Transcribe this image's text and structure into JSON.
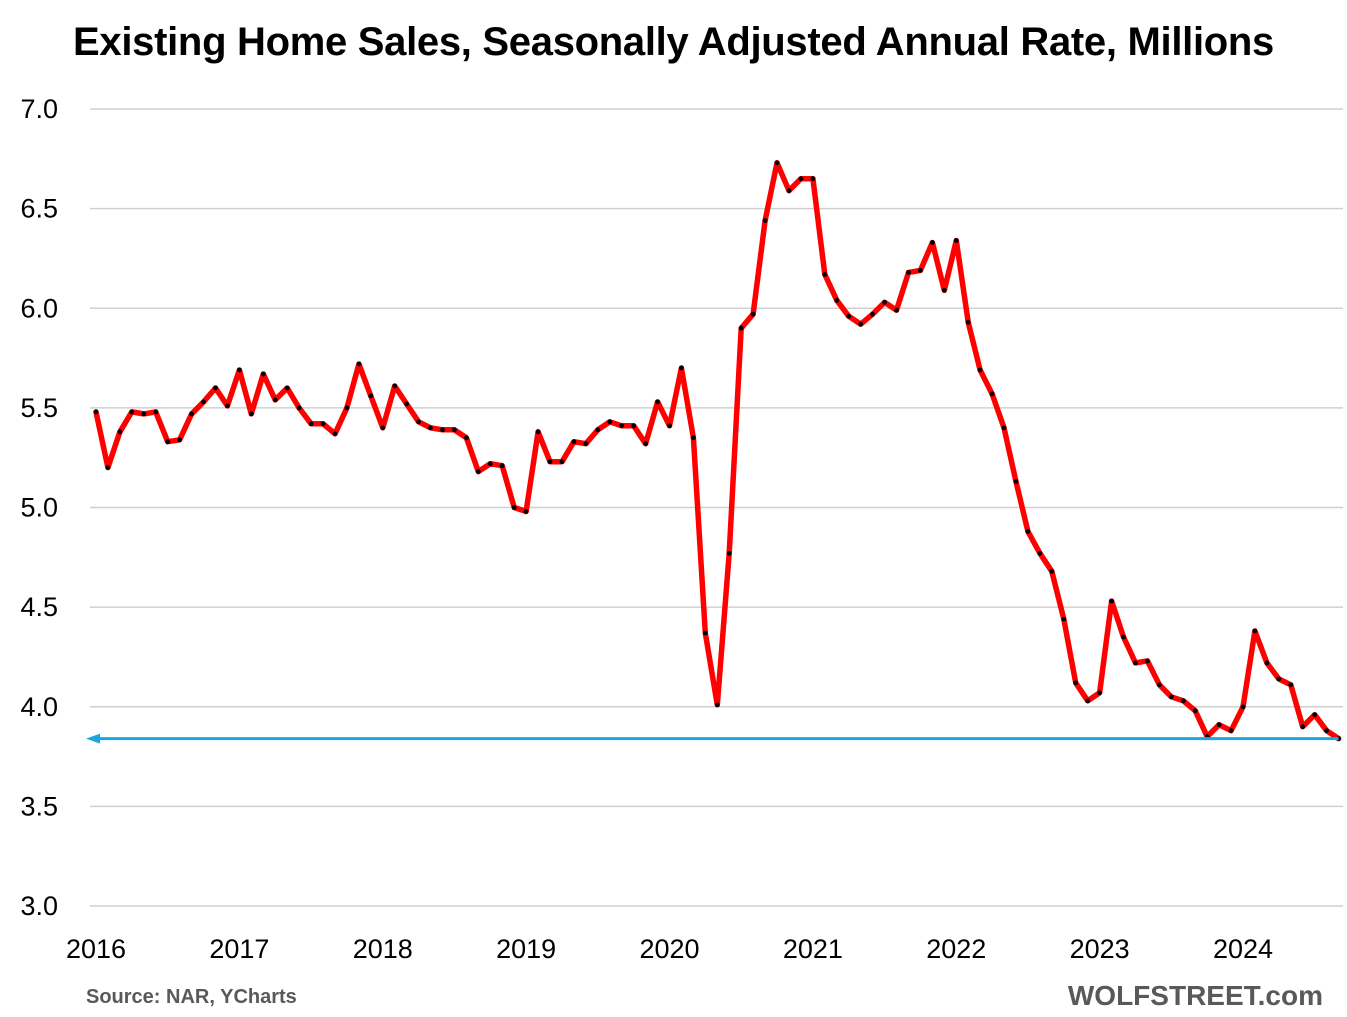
{
  "chart_data": {
    "type": "line",
    "title": "Existing Home Sales, Seasonally Adjusted Annual Rate, Millions",
    "xlabel": "",
    "ylabel": "",
    "ylim": [
      3.0,
      7.0
    ],
    "yticks": [
      "3.0",
      "3.5",
      "4.0",
      "4.5",
      "5.0",
      "5.5",
      "6.0",
      "6.5",
      "7.0"
    ],
    "xticks": [
      "2016",
      "2017",
      "2018",
      "2019",
      "2020",
      "2021",
      "2022",
      "2023",
      "2024"
    ],
    "grid": true,
    "series": [
      {
        "name": "",
        "color": "#ff0000",
        "marker_color": "#000000",
        "start": "2016-01",
        "values": [
          5.48,
          5.2,
          5.38,
          5.48,
          5.47,
          5.48,
          5.33,
          5.34,
          5.47,
          5.53,
          5.6,
          5.51,
          5.69,
          5.47,
          5.67,
          5.54,
          5.6,
          5.5,
          5.42,
          5.42,
          5.37,
          5.5,
          5.72,
          5.56,
          5.4,
          5.61,
          5.52,
          5.43,
          5.4,
          5.39,
          5.39,
          5.35,
          5.18,
          5.22,
          5.21,
          5.0,
          4.98,
          5.38,
          5.23,
          5.23,
          5.33,
          5.32,
          5.39,
          5.43,
          5.41,
          5.41,
          5.32,
          5.53,
          5.41,
          5.7,
          5.35,
          4.37,
          4.01,
          4.77,
          5.9,
          5.97,
          6.44,
          6.73,
          6.59,
          6.65,
          6.65,
          6.17,
          6.04,
          5.96,
          5.92,
          5.97,
          6.03,
          5.99,
          6.18,
          6.19,
          6.33,
          6.09,
          6.34,
          5.93,
          5.69,
          5.57,
          5.4,
          5.13,
          4.88,
          4.77,
          4.68,
          4.44,
          4.12,
          4.03,
          4.07,
          4.53,
          4.35,
          4.22,
          4.23,
          4.11,
          4.05,
          4.03,
          3.98,
          3.85,
          3.91,
          3.88,
          4.0,
          4.38,
          4.22,
          4.14,
          4.11,
          3.9,
          3.96,
          3.88,
          3.84
        ]
      }
    ],
    "reference_line": {
      "value": 3.84,
      "color": "#1aa7dc",
      "arrow": "left"
    }
  },
  "footer": {
    "source": "Source: NAR, YCharts",
    "brand": "WOLFSTREET.com"
  }
}
